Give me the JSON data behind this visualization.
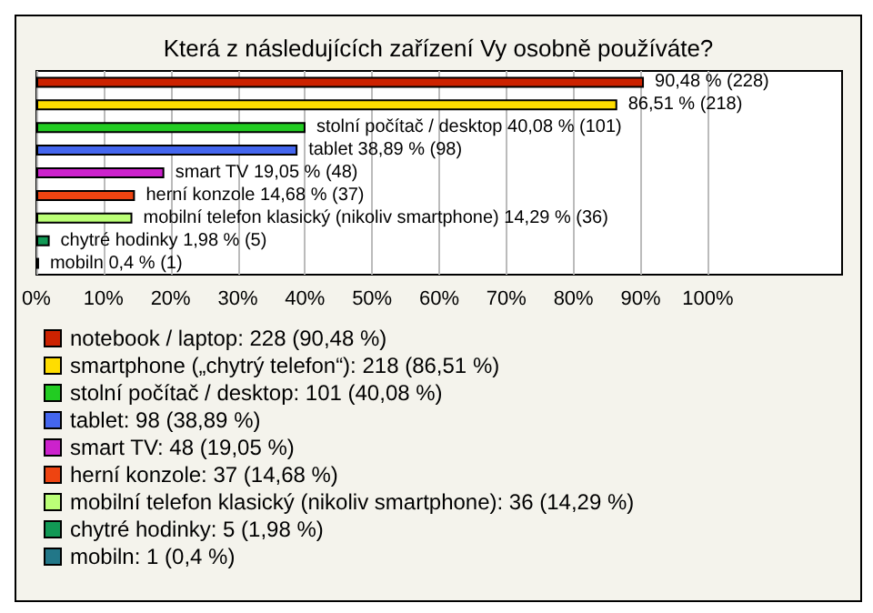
{
  "chart_data": {
    "type": "bar",
    "orientation": "horizontal",
    "title": "Která z následujících zařízení Vy osobně používáte?",
    "categories": [
      null,
      null,
      null,
      null,
      null,
      null,
      null,
      null,
      null
    ],
    "series": [
      {
        "name": "notebook / laptop: 228 (90,48 %)",
        "color": "#cc2200",
        "values": [
          90.48,
          null,
          null,
          null,
          null,
          null,
          null,
          null,
          null
        ]
      },
      {
        "name": "smartphone („chytrý telefon“): 218 (86,51 %)",
        "color": "#ffdd00",
        "values": [
          null,
          86.51,
          null,
          null,
          null,
          null,
          null,
          null,
          null
        ]
      },
      {
        "name": "stolní počítač / desktop: 101 (40,08 %)",
        "color": "#22cc22",
        "values": [
          null,
          null,
          40.08,
          null,
          null,
          null,
          null,
          null,
          null
        ]
      },
      {
        "name": "tablet: 98 (38,89 %)",
        "color": "#4466ee",
        "values": [
          null,
          null,
          null,
          38.89,
          null,
          null,
          null,
          null,
          null
        ]
      },
      {
        "name": "smart TV: 48 (19,05 %)",
        "color": "#cc22cc",
        "values": [
          null,
          null,
          null,
          null,
          19.05,
          null,
          null,
          null,
          null
        ]
      },
      {
        "name": "herní konzole: 37 (14,68 %)",
        "color": "#ee4411",
        "values": [
          null,
          null,
          null,
          null,
          null,
          14.68,
          null,
          null,
          null
        ]
      },
      {
        "name": "mobilní telefon klasický (nikoliv smartphone): 36 (14,29 %)",
        "color": "#bbff77",
        "values": [
          null,
          null,
          null,
          null,
          null,
          null,
          14.29,
          null,
          null
        ]
      },
      {
        "name": "chytré hodinky: 5 (1,98 %)",
        "color": "#119955",
        "values": [
          null,
          null,
          null,
          null,
          null,
          null,
          null,
          1.98,
          null
        ]
      },
      {
        "name": "mobiln: 1 (0,4 %)",
        "color": "#227788",
        "values": [
          null,
          null,
          null,
          null,
          null,
          null,
          null,
          null,
          0.4
        ]
      }
    ],
    "value_labels": [
      "90,48 % (228)",
      "86,51 % (218)",
      "stolní počítač / desktop 40,08 % (101)",
      "tablet 38,89 % (98)",
      "smart TV 19,05 % (48)",
      "herní konzole 14,68 % (37)",
      "mobilní telefon klasický (nikoliv smartphone) 14,29 % (36)",
      "chytré hodinky 1,98 % (5)",
      "mobiln 0,4 % (1)"
    ],
    "xlim": [
      0,
      120
    ],
    "xticks": [
      {
        "value": 0,
        "label": "0%"
      },
      {
        "value": 10,
        "label": "10%"
      },
      {
        "value": 20,
        "label": "20%"
      },
      {
        "value": 30,
        "label": "30%"
      },
      {
        "value": 40,
        "label": "40%"
      },
      {
        "value": 50,
        "label": "50%"
      },
      {
        "value": 60,
        "label": "60%"
      },
      {
        "value": 70,
        "label": "70%"
      },
      {
        "value": 80,
        "label": "80%"
      },
      {
        "value": 90,
        "label": "90%"
      },
      {
        "value": 100,
        "label": "100%"
      }
    ],
    "grid": "x",
    "legend": "bottom"
  }
}
